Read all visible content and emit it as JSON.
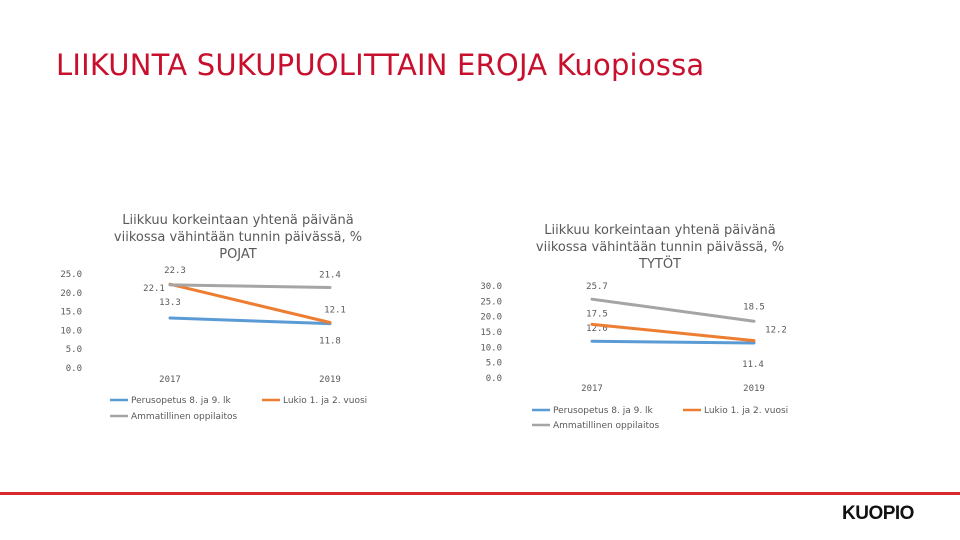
{
  "slide": {
    "title": "LIIKUNTA SUKUPUOLITTAIN EROJA Kuopiossa",
    "logo": "KUOPIO",
    "accent_color": "#d7282f"
  },
  "chart_data": [
    {
      "type": "line",
      "title": "Liikkuu korkeintaan yhtenä päivänä viikossa vähintään tunnin päivässä, % POJAT",
      "title_lines": [
        "Liikkuu korkeintaan yhtenä päivänä",
        "viikossa vähintään tunnin päivässä, %",
        "POJAT"
      ],
      "categories": [
        "2017",
        "2019"
      ],
      "ylim": [
        0,
        25
      ],
      "yticks": [
        "0.0",
        "5.0",
        "10.0",
        "15.0",
        "20.0",
        "25.0"
      ],
      "series": [
        {
          "name": "Perusopetus 8. ja 9. lk",
          "color": "#5b9bd5",
          "values": [
            13.3,
            11.8
          ]
        },
        {
          "name": "Lukio 1. ja 2. vuosi",
          "color": "#ed7d31",
          "values": [
            22.3,
            12.1
          ]
        },
        {
          "name": "Ammatillinen oppilaitos",
          "color": "#a5a5a5",
          "values": [
            22.1,
            21.4
          ]
        }
      ],
      "legend_position": "bottom",
      "grid": false
    },
    {
      "type": "line",
      "title": "Liikkuu korkeintaan yhtenä päivänä viikossa vähintään tunnin päivässä, % TYTÖT",
      "title_lines": [
        "Liikkuu korkeintaan yhtenä päivänä",
        "viikossa vähintään tunnin päivässä, %",
        "TYTÖT"
      ],
      "categories": [
        "2017",
        "2019"
      ],
      "ylim": [
        0,
        30
      ],
      "yticks": [
        "0.0",
        "5.0",
        "10.0",
        "15.0",
        "20.0",
        "25.0",
        "30.0"
      ],
      "series": [
        {
          "name": "Perusopetus 8. ja 9. lk",
          "color": "#5b9bd5",
          "values": [
            12.0,
            11.4
          ]
        },
        {
          "name": "Lukio 1. ja 2. vuosi",
          "color": "#ed7d31",
          "values": [
            17.5,
            12.2
          ]
        },
        {
          "name": "Ammatillinen oppilaitos",
          "color": "#a5a5a5",
          "values": [
            25.7,
            18.5
          ]
        }
      ],
      "legend_position": "bottom",
      "grid": false
    }
  ]
}
